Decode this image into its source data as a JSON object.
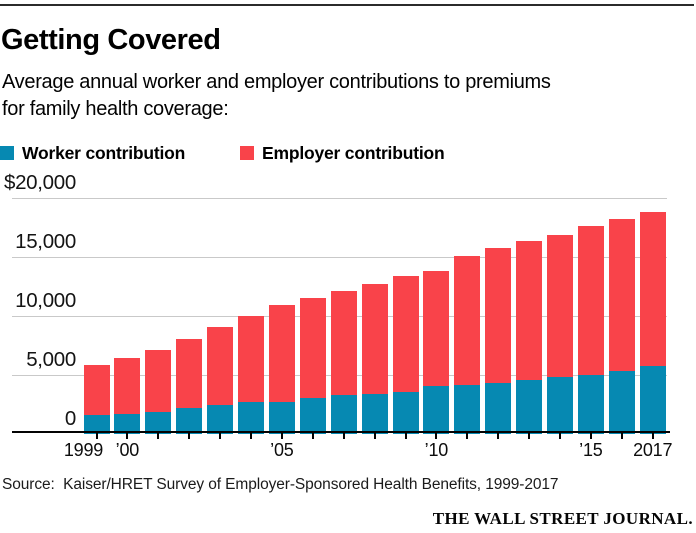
{
  "header": {
    "title": "Getting Covered",
    "subtitle_lines": [
      "Average annual worker and employer contributions to premiums",
      "for family health coverage:"
    ]
  },
  "legend": {
    "items": [
      {
        "key": "worker",
        "label": "Worker contribution",
        "color": "#0689b2"
      },
      {
        "key": "employer",
        "label": "Employer contribution",
        "color": "#f9434a"
      }
    ]
  },
  "chart_data": {
    "type": "bar",
    "stacked": true,
    "title": "Getting Covered",
    "subtitle": "Average annual worker and employer contributions to premiums for family health coverage:",
    "categories": [
      1999,
      2000,
      2001,
      2002,
      2003,
      2004,
      2005,
      2006,
      2007,
      2008,
      2009,
      2010,
      2011,
      2012,
      2013,
      2014,
      2015,
      2016,
      2017
    ],
    "series": [
      {
        "name": "Worker contribution",
        "color": "#0689b2",
        "values": [
          1543,
          1619,
          1787,
          2137,
          2412,
          2661,
          2713,
          2973,
          3281,
          3354,
          3515,
          3997,
          4129,
          4316,
          4565,
          4823,
          4955,
          5277,
          5714
        ]
      },
      {
        "name": "Employer contribution",
        "color": "#f9434a",
        "values": [
          4247,
          4819,
          5274,
          5866,
          6656,
          7289,
          8167,
          8508,
          8824,
          9325,
          9860,
          9773,
          10944,
          11429,
          11786,
          12011,
          12591,
          12865,
          13049
        ]
      }
    ],
    "ylim": [
      0,
      20000
    ],
    "y_ticks": [
      {
        "value": 20000,
        "label": "$20,000"
      },
      {
        "value": 15000,
        "label": "15,000"
      },
      {
        "value": 10000,
        "label": "10,000"
      },
      {
        "value": 5000,
        "label": "5,000"
      },
      {
        "value": 0,
        "label": "0"
      }
    ],
    "x_tick_labels": [
      {
        "year": 1999,
        "label": "1999"
      },
      {
        "year": 2000,
        "label": "’00"
      },
      {
        "year": 2005,
        "label": "’05"
      },
      {
        "year": 2010,
        "label": "’10"
      },
      {
        "year": 2015,
        "label": "’15"
      },
      {
        "year": 2017,
        "label": "2017"
      }
    ],
    "grid": "horizontal",
    "legend_position": "top",
    "colors": {
      "gridline": "#c9c9c9",
      "axis": "#030303"
    }
  },
  "footer": {
    "source": "Source:  Kaiser/HRET Survey of Employer-Sponsored Health Benefits, 1999-2017",
    "brand": "THE WALL STREET JOURNAL."
  }
}
